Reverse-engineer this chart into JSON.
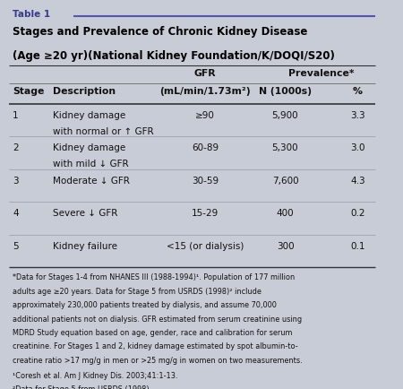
{
  "table_label": "Table 1",
  "title_line1": "Stages and Prevalence of Chronic Kidney Disease",
  "title_line2": "(Age ≥20 yr)(National Kidney Foundation/K/DOQI/S20)",
  "header_col1": "Stage",
  "header_col2": "Description",
  "header_col3_line1": "GFR",
  "header_col3_line2": "(mL/min/1.73m²)",
  "header_col4_line1": "Prevalence*",
  "header_col4_line2": "N (1000s)",
  "header_col5": "%",
  "rows": [
    {
      "stage": "1",
      "desc_line1": "Kidney damage",
      "desc_line2": "with normal or ↑ GFR",
      "gfr": "≥90",
      "n": "5,900",
      "pct": "3.3"
    },
    {
      "stage": "2",
      "desc_line1": "Kidney damage",
      "desc_line2": "with mild ↓ GFR",
      "gfr": "60-89",
      "n": "5,300",
      "pct": "3.0"
    },
    {
      "stage": "3",
      "desc_line1": "Moderate ↓ GFR",
      "desc_line2": "",
      "gfr": "30-59",
      "n": "7,600",
      "pct": "4.3"
    },
    {
      "stage": "4",
      "desc_line1": "Severe ↓ GFR",
      "desc_line2": "",
      "gfr": "15-29",
      "n": "400",
      "pct": "0.2"
    },
    {
      "stage": "5",
      "desc_line1": "Kidney failure",
      "desc_line2": "",
      "gfr": "<15 (or dialysis)",
      "n": "300",
      "pct": "0.1"
    }
  ],
  "footnote_main": "*Data for Stages 1-4 from NHANES III (1988-1994)¹. Population of 177 million\nadults age ≥20 years. Data for Stage 5 from USRDS (1998)² include\napproximately 230,000 patients treated by dialysis, and assume 70,000\nadditional patients not on dialysis. GFR estimated from serum creatinine using\nMDRD Study equation based on age, gender, race and calibration for serum\ncreatinine. For Stages 1 and 2, kidney damage estimated by spot albumin-to-\ncreatine ratio >17 mg/g in men or >25 mg/g in women on two measurements.",
  "footnote_1": "¹Coresh et al. Am J Kidney Dis. 2003;41:1-13.",
  "footnote_2": "²Data for Stage 5 from USRDS (1998).",
  "bg_color": "#c8ccd6",
  "line_color": "#5555aa",
  "text_color": "#111111",
  "title_color": "#000000",
  "table_label_color": "#3a3a8c"
}
